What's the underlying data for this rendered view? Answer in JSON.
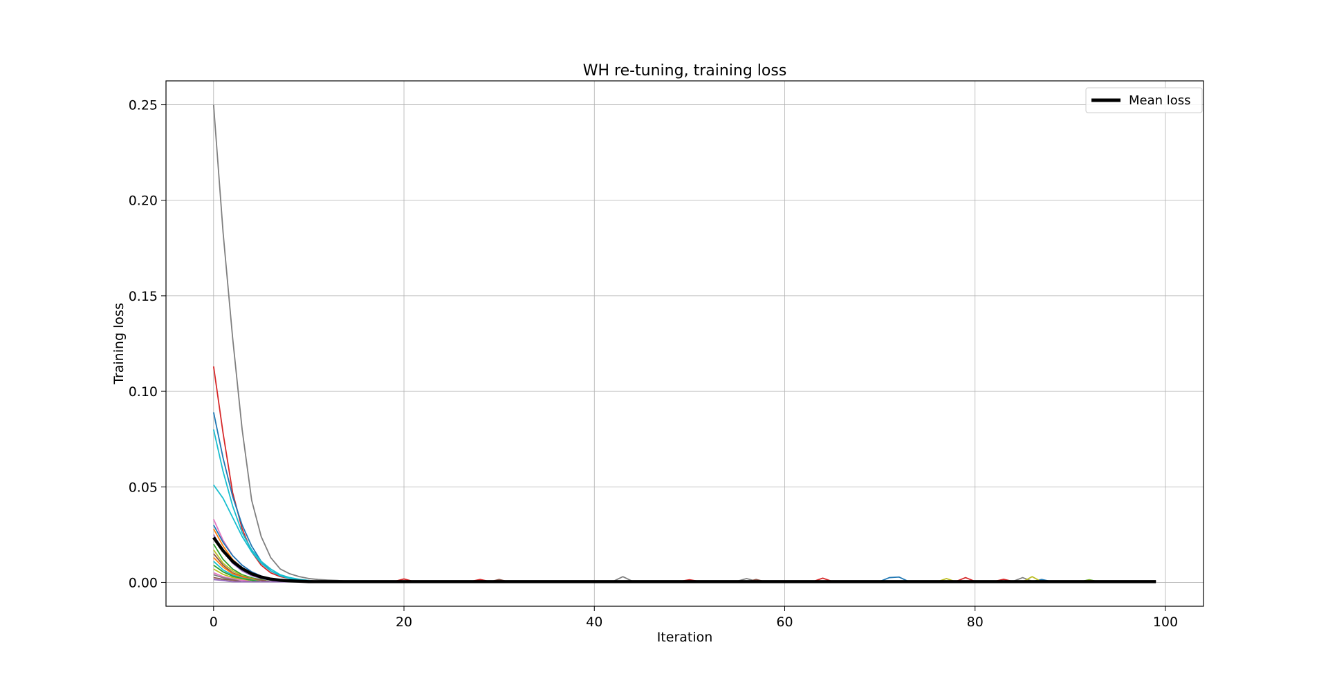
{
  "chart_data": {
    "type": "line",
    "title": "WH re-tuning, training loss",
    "xlabel": "Iteration",
    "ylabel": "Training loss",
    "xlim": [
      -5,
      104
    ],
    "ylim": [
      -0.0125,
      0.2625
    ],
    "xticks": [
      0,
      20,
      40,
      60,
      80,
      100
    ],
    "xtick_labels": [
      "0",
      "20",
      "40",
      "60",
      "80",
      "100"
    ],
    "yticks": [
      0.0,
      0.05,
      0.1,
      0.15,
      0.2,
      0.25
    ],
    "ytick_labels": [
      "0.00",
      "0.05",
      "0.10",
      "0.15",
      "0.20",
      "0.25"
    ],
    "grid": true,
    "legend": {
      "placement": "top-right",
      "entries": [
        "Mean loss"
      ]
    },
    "iterations": 100,
    "series": [
      {
        "color": "#7f7f7f",
        "values": [
          0.25,
          0.183,
          0.128,
          0.08,
          0.043,
          0.024,
          0.013,
          0.007,
          0.0045,
          0.003,
          0.002,
          0.0015,
          0.0012,
          0.001
        ],
        "tail": 0.0006,
        "bumps": [
          [
            43,
            0.003
          ],
          [
            56,
            0.002
          ],
          [
            85,
            0.0025
          ]
        ]
      },
      {
        "color": "#d62728",
        "values": [
          0.113,
          0.078,
          0.047,
          0.028,
          0.016,
          0.009,
          0.005,
          0.003,
          0.002,
          0.0015,
          0.001
        ],
        "tail": 0.0005,
        "bumps": [
          [
            20,
            0.0018
          ],
          [
            28,
            0.0015
          ],
          [
            50,
            0.0014
          ],
          [
            64,
            0.0022
          ],
          [
            79,
            0.0025
          ],
          [
            83,
            0.0016
          ]
        ]
      },
      {
        "color": "#1f77b4",
        "values": [
          0.089,
          0.065,
          0.045,
          0.03,
          0.019,
          0.011,
          0.006,
          0.0035,
          0.002,
          0.0012
        ],
        "tail": 0.0005,
        "bumps": [
          [
            71,
            0.0025
          ],
          [
            72,
            0.0028
          ],
          [
            87,
            0.0015
          ]
        ]
      },
      {
        "color": "#17becf",
        "values": [
          0.08,
          0.058,
          0.04,
          0.026,
          0.017,
          0.011,
          0.007,
          0.004,
          0.0025,
          0.0016,
          0.001
        ],
        "tail": 0.0004,
        "bumps": []
      },
      {
        "color": "#17becf",
        "values": [
          0.051,
          0.044,
          0.034,
          0.024,
          0.016,
          0.01,
          0.006,
          0.0035,
          0.002,
          0.0013
        ],
        "tail": 0.0004,
        "bumps": []
      },
      {
        "color": "#e377c2",
        "values": [
          0.033,
          0.022,
          0.014,
          0.009,
          0.0055,
          0.0033,
          0.002,
          0.0012
        ],
        "tail": 0.0004,
        "bumps": []
      },
      {
        "color": "#1f77b4",
        "values": [
          0.03,
          0.021,
          0.014,
          0.009,
          0.0055,
          0.0033,
          0.002,
          0.0012
        ],
        "tail": 0.0004,
        "bumps": []
      },
      {
        "color": "#ff7f0e",
        "values": [
          0.028,
          0.019,
          0.012,
          0.0075,
          0.0045,
          0.0027,
          0.0016
        ],
        "tail": 0.0004,
        "bumps": []
      },
      {
        "color": "#9467bd",
        "values": [
          0.025,
          0.016,
          0.01,
          0.006,
          0.0035,
          0.002,
          0.0012
        ],
        "tail": 0.0004,
        "bumps": []
      },
      {
        "color": "#2ca02c",
        "values": [
          0.02,
          0.012,
          0.007,
          0.004,
          0.0024,
          0.0014
        ],
        "tail": 0.0003,
        "bumps": [
          [
            92,
            0.0014
          ]
        ]
      },
      {
        "color": "#bcbd22",
        "values": [
          0.017,
          0.01,
          0.006,
          0.0035,
          0.002,
          0.0012
        ],
        "tail": 0.0003,
        "bumps": [
          [
            77,
            0.002
          ],
          [
            86,
            0.003
          ],
          [
            92,
            0.0012
          ]
        ]
      },
      {
        "color": "#8c564b",
        "values": [
          0.015,
          0.009,
          0.005,
          0.003,
          0.0018,
          0.0011
        ],
        "tail": 0.0003,
        "bumps": [
          [
            30,
            0.0015
          ],
          [
            57,
            0.0015
          ]
        ]
      },
      {
        "color": "#ff7f0e",
        "values": [
          0.013,
          0.008,
          0.0045,
          0.0027,
          0.0016
        ],
        "tail": 0.0003,
        "bumps": []
      },
      {
        "color": "#17becf",
        "values": [
          0.011,
          0.0065,
          0.0038,
          0.0022,
          0.0013
        ],
        "tail": 0.0003,
        "bumps": []
      },
      {
        "color": "#2ca02c",
        "values": [
          0.009,
          0.0055,
          0.0032,
          0.0019,
          0.0011
        ],
        "tail": 0.0003,
        "bumps": []
      },
      {
        "color": "#bcbd22",
        "values": [
          0.007,
          0.0042,
          0.0025,
          0.0015
        ],
        "tail": 0.0003,
        "bumps": []
      },
      {
        "color": "#e377c2",
        "values": [
          0.005,
          0.003,
          0.0018,
          0.0011
        ],
        "tail": 0.0003,
        "bumps": []
      },
      {
        "color": "#7f7f7f",
        "values": [
          0.004,
          0.0024,
          0.0015
        ],
        "tail": 0.0003,
        "bumps": []
      },
      {
        "color": "#8c564b",
        "values": [
          0.0025,
          0.0016,
          0.0011
        ],
        "tail": 0.0003,
        "bumps": []
      },
      {
        "color": "#9467bd",
        "values": [
          0.0015,
          0.001
        ],
        "tail": 0.0003,
        "bumps": []
      }
    ],
    "mean_series": {
      "name": "Mean loss",
      "color": "#000000",
      "values": [
        0.0235,
        0.0165,
        0.011,
        0.0072,
        0.0045,
        0.0028,
        0.0017,
        0.0011,
        0.0008,
        0.0006
      ],
      "tail": 0.0004
    }
  }
}
